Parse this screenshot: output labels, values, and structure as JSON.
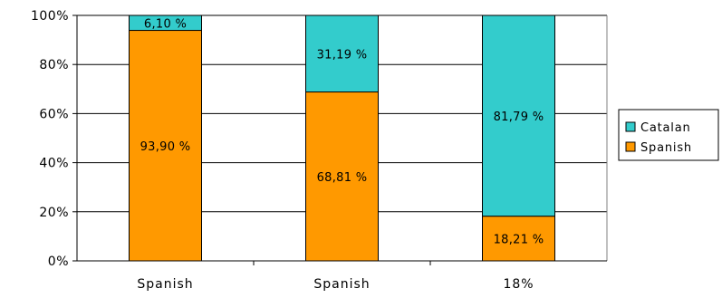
{
  "chart_data": {
    "type": "bar",
    "stacked": true,
    "percent_stacked": true,
    "categories": [
      "Spanish",
      "Spanish",
      "18%"
    ],
    "series": [
      {
        "name": "Spanish",
        "values": [
          93.9,
          68.81,
          18.21
        ],
        "labels": [
          "93,90 %",
          "68,81 %",
          "18,21 %"
        ],
        "color": "#ff9900"
      },
      {
        "name": "Catalan",
        "values": [
          6.1,
          31.19,
          81.79
        ],
        "labels": [
          "6,10 %",
          "31,19 %",
          "81,79 %"
        ],
        "color": "#33cccc"
      }
    ],
    "y_ticks": [
      "0%",
      "20%",
      "40%",
      "60%",
      "80%",
      "100%"
    ],
    "ylim": [
      0,
      100
    ],
    "grid": true,
    "legend": {
      "placement": "right",
      "entries": [
        "Catalan",
        "Spanish"
      ]
    },
    "title": "",
    "xlabel": "",
    "ylabel": ""
  }
}
